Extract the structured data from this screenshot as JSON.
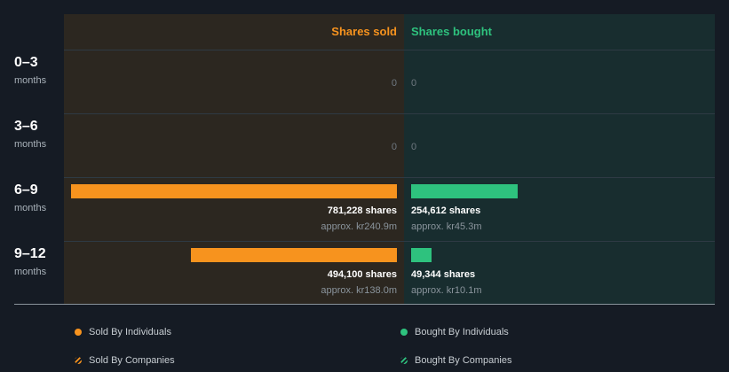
{
  "chart_data": {
    "type": "bar",
    "orientation": "horizontal-diverging",
    "headers": {
      "sold": "Shares sold",
      "bought": "Shares bought"
    },
    "categories": [
      {
        "period": "0–3",
        "unit": "months"
      },
      {
        "period": "3–6",
        "unit": "months"
      },
      {
        "period": "6–9",
        "unit": "months"
      },
      {
        "period": "9–12",
        "unit": "months"
      }
    ],
    "series": [
      {
        "name": "Shares sold",
        "color": "#f7931e",
        "values": [
          0,
          0,
          781228,
          494100
        ],
        "labels": [
          "0",
          "0",
          "781,228 shares",
          "494,100 shares"
        ],
        "approx": [
          "",
          "",
          "approx. kr240.9m",
          "approx. kr138.0m"
        ]
      },
      {
        "name": "Shares bought",
        "color": "#2ec27e",
        "values": [
          0,
          0,
          254612,
          49344
        ],
        "labels": [
          "0",
          "0",
          "254,612 shares",
          "49,344 shares"
        ],
        "approx": [
          "",
          "",
          "approx. kr45.3m",
          "approx. kr10.1m"
        ]
      }
    ],
    "scale_max": 781228,
    "legend": [
      {
        "label": "Sold By Individuals",
        "color": "#f7931e",
        "style": "solid"
      },
      {
        "label": "Bought By Individuals",
        "color": "#2ec27e",
        "style": "solid"
      },
      {
        "label": "Sold By Companies",
        "color": "#f7931e",
        "style": "hatched"
      },
      {
        "label": "Bought By Companies",
        "color": "#2ec27e",
        "style": "hatched"
      }
    ],
    "legend_position": "bottom"
  }
}
